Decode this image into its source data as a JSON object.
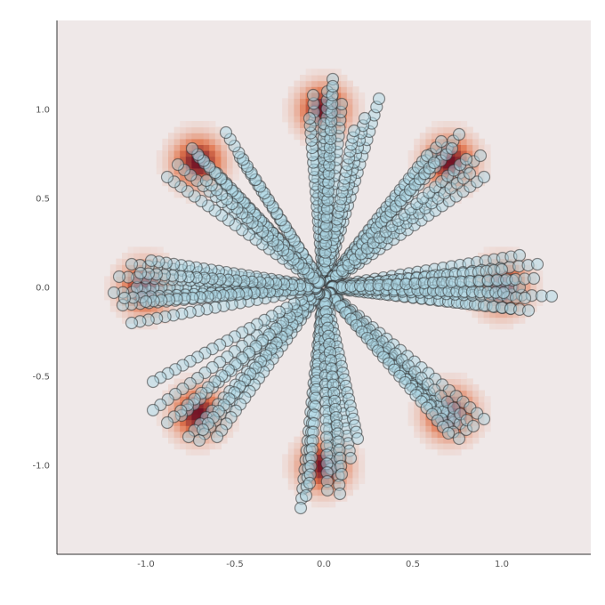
{
  "colors": {
    "background": "#efe8e8",
    "point_fill": "#add8e6",
    "point_edge": "#2f2f2f",
    "density_low": "#efe8e8",
    "density_mid": "#e2774f",
    "density_high": "#6e0f24"
  },
  "chart_data": {
    "type": "scatter",
    "title": "",
    "xlabel": "",
    "ylabel": "",
    "xlim": [
      -1.5,
      1.5
    ],
    "ylim": [
      -1.5,
      1.5
    ],
    "xticks": [
      -1.0,
      -0.5,
      0.0,
      0.5,
      1.0
    ],
    "yticks": [
      -1.0,
      -0.5,
      0.0,
      0.5,
      1.0
    ],
    "xtick_labels": [
      "-1.0",
      "-0.5",
      "0.0",
      "0.5",
      "1.0"
    ],
    "ytick_labels": [
      "-1.0",
      "-0.5",
      "0.0",
      "0.5",
      "1.0"
    ],
    "grid": false,
    "background_heatmap": {
      "description_type": "gaussian mixture density",
      "centers": [
        [
          0.0,
          1.0
        ],
        [
          0.707,
          0.707
        ],
        [
          1.0,
          0.0
        ],
        [
          0.707,
          -0.707
        ],
        [
          0.0,
          -1.0
        ],
        [
          -0.707,
          -0.707
        ],
        [
          -1.0,
          0.0
        ],
        [
          -0.707,
          0.707
        ]
      ],
      "sigma": 0.09,
      "cell_size": 0.033
    },
    "trajectories": {
      "start": [
        0.0,
        0.0
      ],
      "steps": 23,
      "endpoints": [
        [
          0.05,
          1.17
        ],
        [
          0.02,
          1.1
        ],
        [
          -0.06,
          1.08
        ],
        [
          0.1,
          1.03
        ],
        [
          0.31,
          1.06
        ],
        [
          0.23,
          0.95
        ],
        [
          -0.08,
          0.95
        ],
        [
          0.0,
          0.92
        ],
        [
          0.17,
          0.88
        ],
        [
          0.05,
          1.13
        ],
        [
          0.76,
          0.86
        ],
        [
          0.66,
          0.82
        ],
        [
          0.88,
          0.74
        ],
        [
          0.9,
          0.62
        ],
        [
          0.58,
          0.74
        ],
        [
          0.82,
          0.64
        ],
        [
          0.72,
          0.78
        ],
        [
          0.62,
          0.7
        ],
        [
          0.8,
          0.72
        ],
        [
          1.1,
          0.18
        ],
        [
          1.2,
          0.13
        ],
        [
          1.28,
          -0.05
        ],
        [
          1.1,
          0.0
        ],
        [
          1.05,
          -0.12
        ],
        [
          1.15,
          -0.13
        ],
        [
          1.0,
          0.1
        ],
        [
          1.06,
          0.04
        ],
        [
          1.13,
          -0.06
        ],
        [
          1.01,
          -0.03
        ],
        [
          1.18,
          0.05
        ],
        [
          0.73,
          -0.76
        ],
        [
          0.9,
          -0.74
        ],
        [
          0.8,
          -0.8
        ],
        [
          0.67,
          -0.7
        ],
        [
          0.6,
          -0.66
        ],
        [
          0.76,
          -0.85
        ],
        [
          0.84,
          -0.78
        ],
        [
          0.7,
          -0.82
        ],
        [
          0.09,
          -1.16
        ],
        [
          -0.13,
          -1.24
        ],
        [
          -0.1,
          -1.17
        ],
        [
          0.04,
          -1.02
        ],
        [
          0.15,
          -0.96
        ],
        [
          0.19,
          -0.85
        ],
        [
          -0.08,
          -1.1
        ],
        [
          0.02,
          -1.14
        ],
        [
          0.1,
          -1.05
        ],
        [
          -0.76,
          -0.84
        ],
        [
          -0.96,
          -0.69
        ],
        [
          -0.7,
          -0.86
        ],
        [
          -0.6,
          -0.84
        ],
        [
          -0.8,
          -0.72
        ],
        [
          -0.68,
          -0.8
        ],
        [
          -0.88,
          -0.76
        ],
        [
          -0.96,
          -0.53
        ],
        [
          -1.18,
          -0.03
        ],
        [
          -1.13,
          -0.1
        ],
        [
          -1.05,
          0.0
        ],
        [
          -1.15,
          0.06
        ],
        [
          -1.08,
          0.13
        ],
        [
          -0.97,
          0.15
        ],
        [
          -1.12,
          -0.06
        ],
        [
          -1.08,
          -0.2
        ],
        [
          -1.0,
          -0.08
        ],
        [
          -1.03,
          0.08
        ],
        [
          -0.82,
          0.69
        ],
        [
          -0.7,
          0.73
        ],
        [
          -0.6,
          0.64
        ],
        [
          -0.47,
          0.73
        ],
        [
          -0.55,
          0.87
        ],
        [
          -0.88,
          0.62
        ],
        [
          -0.74,
          0.78
        ],
        [
          -0.66,
          0.6
        ]
      ]
    }
  }
}
